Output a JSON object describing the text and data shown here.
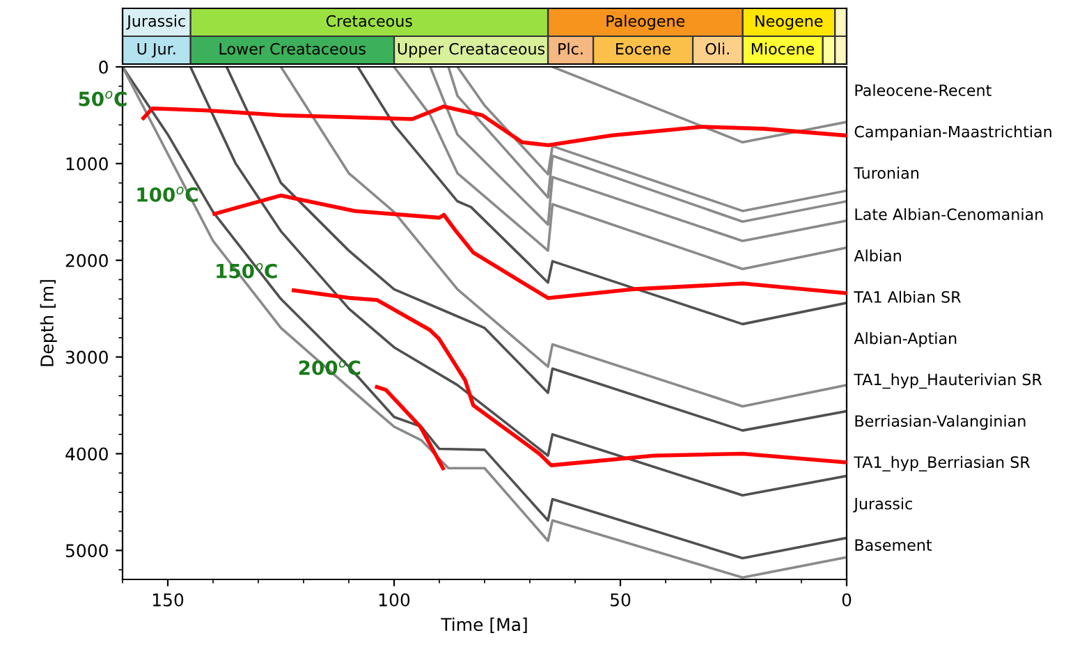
{
  "chart_data": [
    {
      "type": "bar",
      "orientation": "horizontal",
      "stacked": true,
      "categories": [
        null,
        null
      ],
      "xlim": [
        160,
        0
      ],
      "tick_labels": false,
      "series": [
        {
          "values": [
            2.6,
            2.6
          ],
          "colors": [
            "#fff7c0",
            "#fff7c0"
          ],
          "value_labels": [
            null,
            null
          ]
        },
        {
          "values": [
            20.4,
            2.7
          ],
          "colors": [
            "#ffe600",
            "#ffff99"
          ],
          "value_labels": [
            "Neogene",
            null
          ]
        },
        {
          "values": [
            43,
            17.7
          ],
          "colors": [
            "#f7941d",
            "#ffff33"
          ],
          "value_labels": [
            "Paleogene",
            "Miocene"
          ]
        },
        {
          "values": [
            79,
            11
          ],
          "colors": [
            "#9be041",
            "#fdd08a"
          ],
          "value_labels": [
            "Cretaceous",
            "Oli."
          ]
        },
        {
          "values": [
            15,
            22
          ],
          "colors": [
            "#d8f0f5",
            "#fbc04a"
          ],
          "value_labels": [
            "Jurassic",
            "Eocene"
          ]
        },
        {
          "values": [
            null,
            10
          ],
          "colors": [
            "#ffffff",
            "#f5b880"
          ],
          "value_labels": [
            null,
            "Plc."
          ]
        },
        {
          "values": [
            null,
            34
          ],
          "colors": [
            "#ffffff",
            "#d9f09a"
          ],
          "value_labels": [
            null,
            "Upper Creataceous"
          ]
        },
        {
          "values": [
            null,
            45
          ],
          "colors": [
            "#ffffff",
            "#3cb05a"
          ],
          "value_labels": [
            null,
            "Lower Creataceous"
          ]
        },
        {
          "values": [
            null,
            15
          ],
          "colors": [
            "#ffffff",
            "#b3e3ee"
          ],
          "value_labels": [
            null,
            "U Jur."
          ]
        }
      ]
    },
    {
      "type": "line",
      "xlabel": "Time [Ma]",
      "ylabel": "Depth [m]",
      "xlim": [
        160,
        0
      ],
      "ylim": [
        5300,
        0
      ],
      "xticks": [
        150,
        100,
        50,
        0
      ],
      "yticks": [
        0,
        1000,
        2000,
        3000,
        4000,
        5000
      ],
      "grid": false,
      "legend": false,
      "marker": "none",
      "line_style": "solid",
      "series": [
        {
          "color": "#8a8a8a",
          "x": [
            65,
            23,
            0
          ],
          "values": [
            0,
            780,
            570
          ]
        },
        {
          "color": "#8a8a8a",
          "x": [
            86,
            80,
            66,
            65,
            23,
            0
          ],
          "values": [
            0,
            400,
            1110,
            820,
            1490,
            1280
          ]
        },
        {
          "color": "#8a8a8a",
          "x": [
            88,
            86,
            66,
            65,
            23,
            0
          ],
          "values": [
            0,
            300,
            1350,
            920,
            1600,
            1390
          ]
        },
        {
          "color": "#8a8a8a",
          "x": [
            92,
            86,
            66,
            65,
            23,
            0
          ],
          "values": [
            0,
            700,
            1630,
            1140,
            1800,
            1590
          ]
        },
        {
          "color": "#8a8a8a",
          "x": [
            100,
            92,
            86,
            66,
            65,
            23,
            0
          ],
          "values": [
            0,
            500,
            1100,
            1900,
            1420,
            2090,
            1870
          ]
        },
        {
          "color": "#505050",
          "x": [
            108,
            100,
            92,
            86,
            83,
            66,
            65,
            23,
            0
          ],
          "values": [
            0,
            600,
            1050,
            1390,
            1450,
            2230,
            2010,
            2660,
            2440
          ]
        },
        {
          "color": "#8a8a8a",
          "x": [
            125,
            110,
            100,
            86,
            66,
            65,
            23,
            0
          ],
          "values": [
            0,
            1100,
            1500,
            2300,
            3100,
            2870,
            3510,
            3290
          ]
        },
        {
          "color": "#505050",
          "x": [
            137,
            125,
            110,
            100,
            86,
            80,
            66,
            65,
            23,
            0
          ],
          "values": [
            0,
            1200,
            1900,
            2300,
            2580,
            2700,
            3370,
            3120,
            3760,
            3560
          ]
        },
        {
          "color": "#505050",
          "x": [
            145,
            135,
            125,
            110,
            100,
            86,
            66,
            65,
            23,
            0
          ],
          "values": [
            0,
            1000,
            1700,
            2500,
            2900,
            3290,
            4020,
            3800,
            4430,
            4230
          ]
        },
        {
          "color": "#505050",
          "x": [
            160,
            150,
            140,
            125,
            110,
            100,
            94,
            90,
            80,
            66,
            65,
            23,
            0
          ],
          "values": [
            0,
            700,
            1500,
            2400,
            3100,
            3620,
            3720,
            3950,
            3960,
            4690,
            4470,
            5080,
            4870
          ]
        },
        {
          "color": "#8a8a8a",
          "x": [
            160,
            150,
            140,
            125,
            105,
            100,
            94,
            88,
            80,
            66,
            65,
            23,
            0
          ],
          "values": [
            0,
            900,
            1800,
            2700,
            3520,
            3720,
            3860,
            4150,
            4150,
            4900,
            4690,
            5280,
            5070
          ]
        },
        {
          "name": "50$^{o}$C",
          "color": "#ff0000",
          "x": [
            155.4,
            153.4,
            141.7,
            125,
            96,
            89,
            80.5,
            71.7,
            65.9,
            52,
            31.8,
            18.4,
            0
          ],
          "values": [
            530,
            430,
            450,
            500,
            540,
            410,
            500,
            780,
            810,
            710,
            620,
            640,
            710
          ]
        },
        {
          "name": "100$^{o}$C",
          "color": "#ff0000",
          "x": [
            139.7,
            125,
            108.7,
            90,
            89,
            86.3,
            82.5,
            66,
            47.5,
            23,
            0
          ],
          "values": [
            1520,
            1330,
            1490,
            1560,
            1530,
            1700,
            1920,
            2390,
            2300,
            2240,
            2340
          ]
        },
        {
          "name": "150$^{o}$C",
          "color": "#ff0000",
          "x": [
            122.2,
            109.6,
            103.8,
            92.1,
            90.1,
            84.3,
            82.5,
            67.9,
            65.3,
            42.6,
            23,
            0
          ],
          "values": [
            2310,
            2390,
            2410,
            2720,
            2810,
            3240,
            3500,
            4000,
            4120,
            4020,
            4000,
            4090
          ]
        },
        {
          "name": "200$^{o}$C",
          "color": "#ff0000",
          "x": [
            103.8,
            101.8,
            94.2,
            89.2
          ],
          "values": [
            3310,
            3340,
            3720,
            4150
          ]
        }
      ],
      "annotations": [
        "Paleocene-Recent",
        "Campanian-Maastrichtian",
        "Turonian",
        "Late Albian-Cenomanian",
        "Albian",
        "TA1 Albian SR",
        "Albian-Aptian",
        "TA1_hyp_Hauterivian SR",
        "Berriasian-Valanginian",
        "TA1_hyp_Berriasian SR",
        "Jurassic",
        "Basement"
      ]
    }
  ]
}
